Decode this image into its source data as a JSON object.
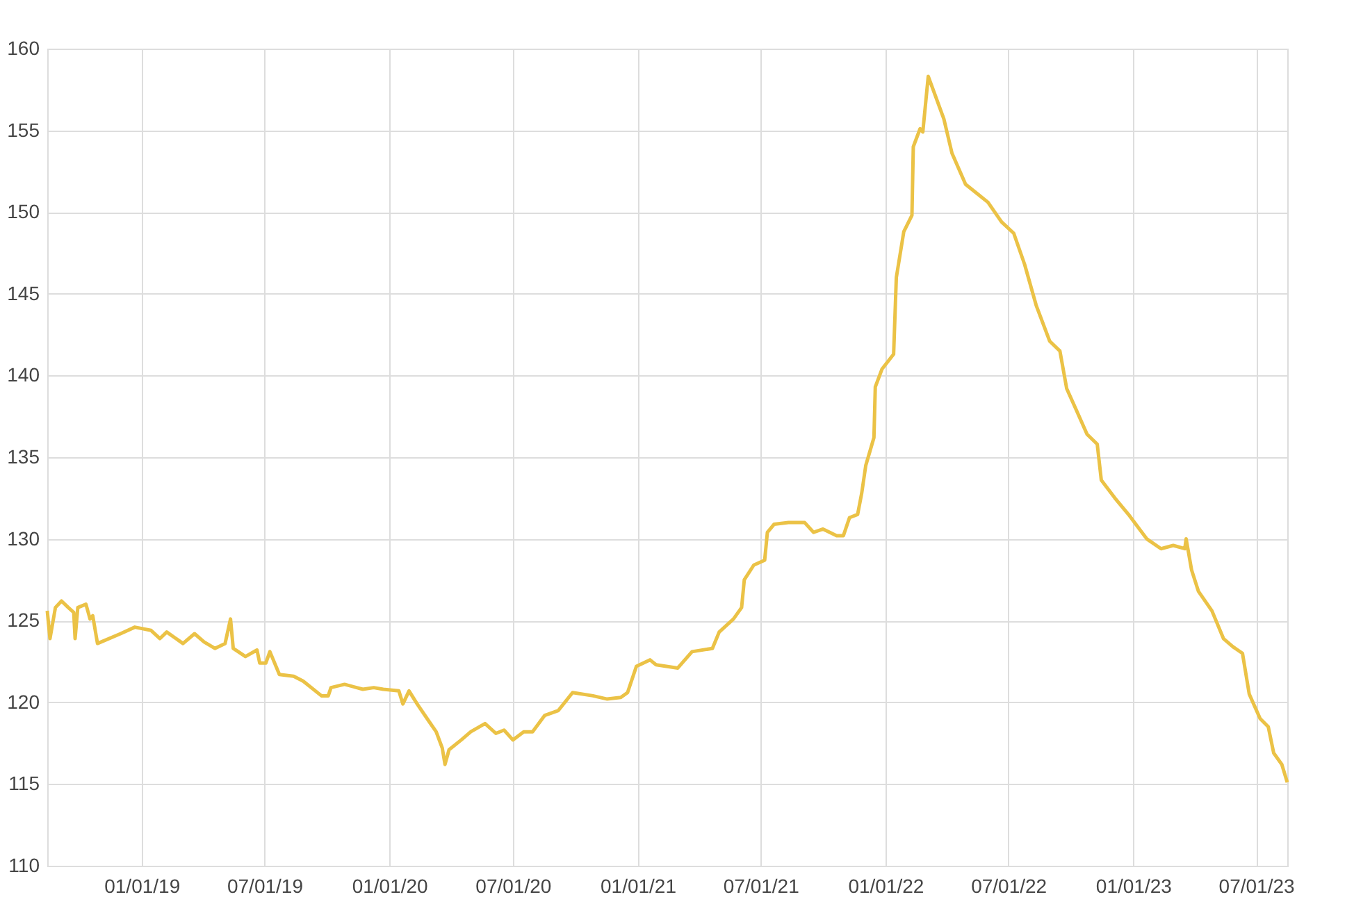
{
  "chart_data": {
    "type": "line",
    "xlim": [
      "2018-08-15",
      "2023-08-16"
    ],
    "ylim": [
      110,
      160
    ],
    "yticks": [
      110,
      115,
      120,
      125,
      130,
      135,
      140,
      145,
      150,
      155,
      160
    ],
    "xticks": [
      {
        "value": "2019-01-01",
        "label": "01/01/19"
      },
      {
        "value": "2019-07-01",
        "label": "07/01/19"
      },
      {
        "value": "2020-01-01",
        "label": "01/01/20"
      },
      {
        "value": "2020-07-01",
        "label": "07/01/20"
      },
      {
        "value": "2021-01-01",
        "label": "01/01/21"
      },
      {
        "value": "2021-07-01",
        "label": "07/01/21"
      },
      {
        "value": "2022-01-01",
        "label": "01/01/22"
      },
      {
        "value": "2022-07-01",
        "label": "07/01/22"
      },
      {
        "value": "2023-01-01",
        "label": "01/01/23"
      },
      {
        "value": "2023-07-01",
        "label": "07/01/23"
      }
    ],
    "grid": true,
    "legend": false,
    "marker": "none",
    "line_style": "solid",
    "series": [
      {
        "color": "#ebc246",
        "x": [
          "2018-08-15",
          "2018-08-19",
          "2018-08-27",
          "2018-09-05",
          "2018-09-15",
          "2018-09-23",
          "2018-09-25",
          "2018-09-29",
          "2018-10-11",
          "2018-10-17",
          "2018-10-21",
          "2018-10-28",
          "2018-12-01",
          "2018-12-22",
          "2019-01-15",
          "2019-01-28",
          "2019-02-07",
          "2019-03-03",
          "2019-03-20",
          "2019-04-03",
          "2019-04-19",
          "2019-05-04",
          "2019-05-12",
          "2019-05-16",
          "2019-06-03",
          "2019-06-20",
          "2019-06-24",
          "2019-07-03",
          "2019-07-09",
          "2019-07-23",
          "2019-08-13",
          "2019-08-27",
          "2019-09-23",
          "2019-10-03",
          "2019-10-07",
          "2019-10-27",
          "2019-11-23",
          "2019-12-09",
          "2019-12-23",
          "2020-01-15",
          "2020-01-21",
          "2020-01-30",
          "2020-02-11",
          "2020-02-29",
          "2020-03-10",
          "2020-03-19",
          "2020-03-23",
          "2020-03-29",
          "2020-04-16",
          "2020-04-30",
          "2020-05-21",
          "2020-06-06",
          "2020-06-18",
          "2020-07-01",
          "2020-07-17",
          "2020-07-30",
          "2020-08-17",
          "2020-09-06",
          "2020-09-27",
          "2020-10-27",
          "2020-11-17",
          "2020-12-07",
          "2020-12-17",
          "2020-12-30",
          "2021-01-19",
          "2021-01-28",
          "2021-03-01",
          "2021-03-22",
          "2021-04-21",
          "2021-05-01",
          "2021-05-22",
          "2021-06-03",
          "2021-06-07",
          "2021-06-21",
          "2021-07-07",
          "2021-07-11",
          "2021-07-21",
          "2021-08-11",
          "2021-09-04",
          "2021-09-17",
          "2021-10-01",
          "2021-10-21",
          "2021-10-31",
          "2021-11-09",
          "2021-11-21",
          "2021-11-27",
          "2021-12-03",
          "2021-12-15",
          "2021-12-17",
          "2021-12-27",
          "2022-01-13",
          "2022-01-17",
          "2022-01-28",
          "2022-02-09",
          "2022-02-11",
          "2022-02-21",
          "2022-02-25",
          "2022-03-05",
          "2022-03-13",
          "2022-03-28",
          "2022-04-09",
          "2022-04-29",
          "2022-05-14",
          "2022-06-01",
          "2022-06-21",
          "2022-07-09",
          "2022-07-25",
          "2022-08-11",
          "2022-08-31",
          "2022-09-15",
          "2022-09-25",
          "2022-10-09",
          "2022-10-25",
          "2022-11-09",
          "2022-11-15",
          "2022-12-05",
          "2022-12-25",
          "2023-01-21",
          "2023-02-11",
          "2023-03-01",
          "2023-03-18",
          "2023-03-20",
          "2023-03-28",
          "2023-04-07",
          "2023-04-27",
          "2023-05-14",
          "2023-05-28",
          "2023-06-11",
          "2023-06-21",
          "2023-07-07",
          "2023-07-19",
          "2023-07-27",
          "2023-08-08",
          "2023-08-16"
        ],
        "values": [
          125.6,
          123.9,
          125.8,
          126.2,
          125.8,
          125.5,
          123.9,
          125.8,
          126.0,
          125.1,
          125.3,
          123.6,
          124.2,
          124.6,
          124.4,
          123.9,
          124.3,
          123.6,
          124.2,
          123.7,
          123.3,
          123.6,
          125.1,
          123.3,
          122.8,
          123.2,
          122.4,
          122.4,
          123.1,
          121.7,
          121.6,
          121.3,
          120.4,
          120.4,
          120.9,
          121.1,
          120.8,
          120.9,
          120.8,
          120.7,
          119.9,
          120.7,
          119.9,
          118.8,
          118.2,
          117.2,
          116.2,
          117.1,
          117.7,
          118.2,
          118.7,
          118.1,
          118.3,
          117.7,
          118.2,
          118.2,
          119.2,
          119.5,
          120.6,
          120.4,
          120.2,
          120.3,
          120.6,
          122.2,
          122.6,
          122.3,
          122.1,
          123.1,
          123.3,
          124.3,
          125.1,
          125.8,
          127.5,
          128.4,
          128.7,
          130.4,
          130.9,
          131.0,
          131.0,
          130.4,
          130.6,
          130.2,
          130.2,
          131.3,
          131.5,
          132.8,
          134.5,
          136.2,
          139.3,
          140.4,
          141.3,
          146.0,
          148.8,
          149.8,
          154.0,
          155.1,
          154.9,
          158.3,
          157.4,
          155.7,
          153.6,
          151.7,
          151.2,
          150.6,
          149.4,
          148.7,
          146.8,
          144.3,
          142.1,
          141.5,
          139.2,
          137.9,
          136.4,
          135.8,
          133.6,
          132.5,
          131.5,
          130.0,
          129.4,
          129.6,
          129.4,
          130.0,
          128.1,
          126.8,
          125.6,
          123.9,
          123.4,
          123.0,
          120.5,
          119.0,
          118.5,
          116.9,
          116.2,
          115.1
        ]
      }
    ]
  }
}
